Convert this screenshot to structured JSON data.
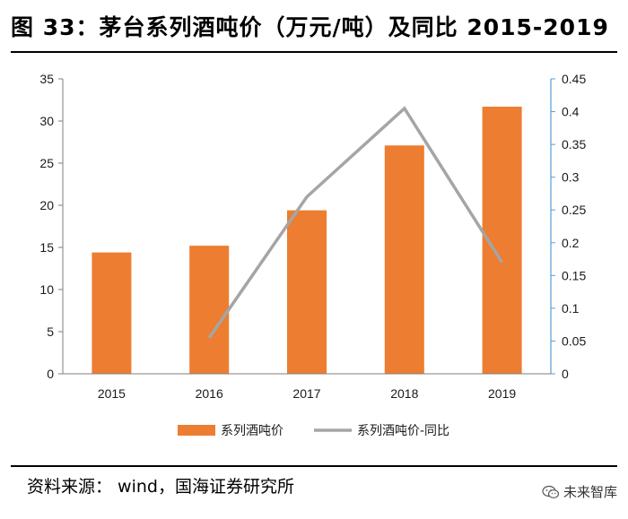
{
  "title": "图 33：茅台系列酒吨价（万元/吨）及同比 2015-2019",
  "source": "资料来源：  wind，国海证券研究所",
  "watermark": "未来智库",
  "watermark_icon": "wechat-icon",
  "colors": {
    "bar": "#ED7D31",
    "line": "#A5A5A5",
    "right_axis": "#5B9BD5"
  },
  "chart_data": {
    "type": "bar",
    "categories": [
      "2015",
      "2016",
      "2017",
      "2018",
      "2019"
    ],
    "series": [
      {
        "name": "系列酒吨价",
        "type": "bar",
        "axis": "left",
        "values": [
          14.4,
          15.2,
          19.4,
          27.1,
          31.7
        ]
      },
      {
        "name": "系列酒吨价-同比",
        "type": "line",
        "axis": "right",
        "values": [
          null,
          0.055,
          0.27,
          0.405,
          0.17
        ]
      }
    ],
    "y_left": {
      "ylim": [
        0,
        35
      ],
      "ticks": [
        "0",
        "5",
        "10",
        "15",
        "20",
        "25",
        "30",
        "35"
      ]
    },
    "y_right": {
      "ylim": [
        0,
        0.45
      ],
      "ticks": [
        "0",
        "0.05",
        "0.1",
        "0.15",
        "0.2",
        "0.25",
        "0.3",
        "0.35",
        "0.4",
        "0.45"
      ]
    },
    "legend_position": "bottom",
    "grid": false
  }
}
